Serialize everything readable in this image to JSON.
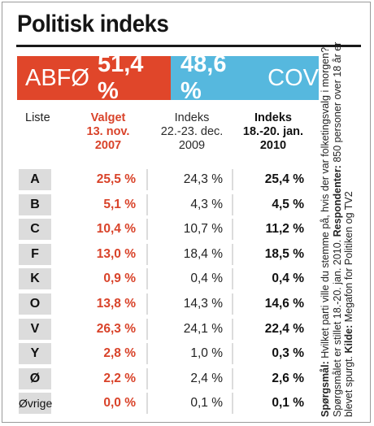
{
  "title": "Politisk indeks",
  "bloc_left": {
    "label": "ABFØ",
    "value_text": "51,4 %",
    "color": "#e0462a"
  },
  "bloc_right": {
    "label": "COV",
    "value_text": "48,6 %",
    "color": "#56b8de"
  },
  "headers": {
    "liste": "Liste",
    "valgt_l1": "Valget",
    "valgt_l2": "13. nov.",
    "valgt_l3": "2007",
    "idx1_l1": "Indeks",
    "idx1_l2": "22.-23. dec.",
    "idx1_l3": "2009",
    "idx2_l1": "Indeks",
    "idx2_l2": "18.-20. jan.",
    "idx2_l3": "2010"
  },
  "side_note": {
    "q_label": "Spørgsmål:",
    "q_text": " Hvilket parti ville du stemme på, hvis der var folketingsvalg i morgen?",
    "line2": "Spørgsmålet er stillet 18.-20. jan. 2010. ",
    "resp_label": "Respondenter:",
    "resp_text": " 850 personer over 18 år er",
    "line3": "blevet spurgt. ",
    "src_label": "Kilde:",
    "src_text": " Megafon for Politiken og TV2"
  },
  "chart_data": {
    "type": "table",
    "title": "Politisk indeks",
    "columns": [
      "Liste",
      "Valget 13. nov. 2007",
      "Indeks 22.-23. dec. 2009",
      "Indeks 18.-20. jan. 2010"
    ],
    "rows": [
      {
        "party": "A",
        "valgt": "25,5 %",
        "idx1": "24,3 %",
        "idx2": "25,4 %"
      },
      {
        "party": "B",
        "valgt": "5,1 %",
        "idx1": "4,3 %",
        "idx2": "4,5 %"
      },
      {
        "party": "C",
        "valgt": "10,4 %",
        "idx1": "10,7 %",
        "idx2": "11,2 %"
      },
      {
        "party": "F",
        "valgt": "13,0 %",
        "idx1": "18,4 %",
        "idx2": "18,5 %"
      },
      {
        "party": "K",
        "valgt": "0,9 %",
        "idx1": "0,4 %",
        "idx2": "0,4 %"
      },
      {
        "party": "O",
        "valgt": "13,8 %",
        "idx1": "14,3 %",
        "idx2": "14,6 %"
      },
      {
        "party": "V",
        "valgt": "26,3 %",
        "idx1": "24,1 %",
        "idx2": "22,4 %"
      },
      {
        "party": "Y",
        "valgt": "2,8 %",
        "idx1": "1,0 %",
        "idx2": "0,3 %"
      },
      {
        "party": "Ø",
        "valgt": "2,2 %",
        "idx1": "2,4 %",
        "idx2": "2,6 %"
      },
      {
        "party": "Øvrige",
        "valgt": "0,0 %",
        "idx1": "0,1 %",
        "idx2": "0,1 %"
      }
    ],
    "blocs": [
      {
        "name": "ABFØ",
        "value": 51.4
      },
      {
        "name": "COV",
        "value": 48.6
      }
    ]
  }
}
